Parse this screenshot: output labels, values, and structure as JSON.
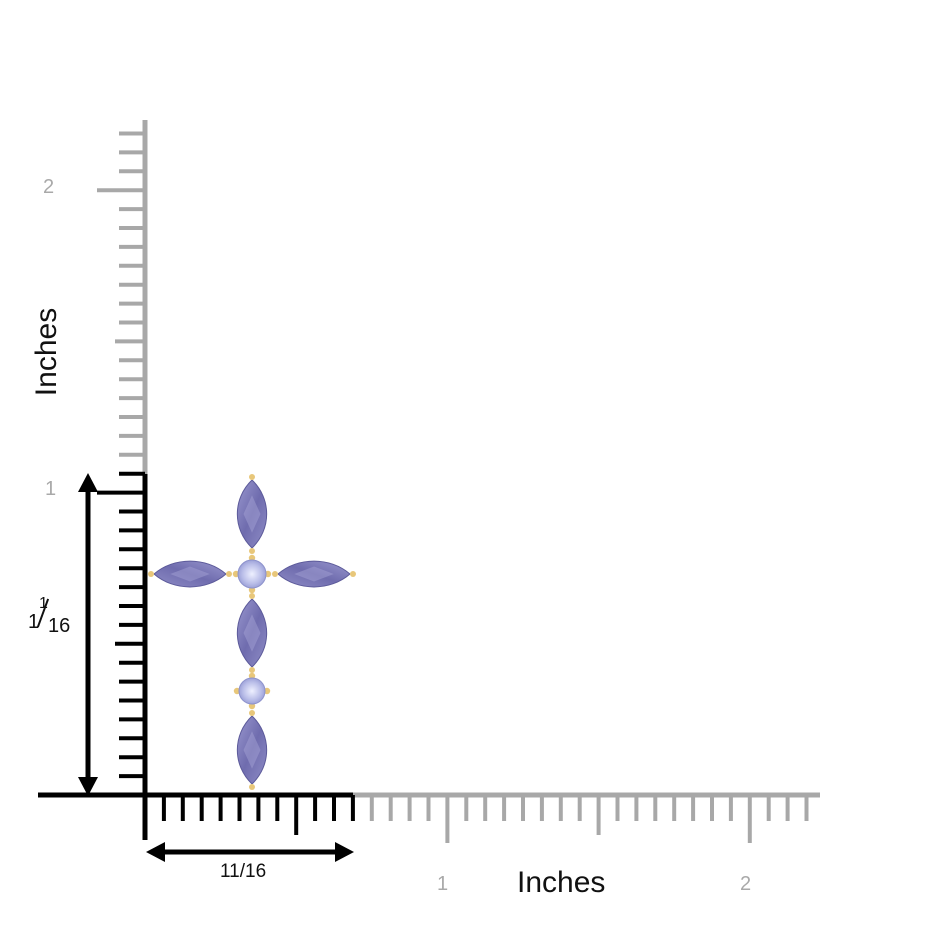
{
  "y_axis": {
    "title": "Inches",
    "tick_labels": [
      "1",
      "2"
    ]
  },
  "x_axis": {
    "title": "Inches",
    "tick_labels": [
      "1",
      "2"
    ]
  },
  "dimensions": {
    "width": "11/16",
    "height_whole": "1",
    "height_numerator": "1",
    "height_denominator": "16"
  },
  "colors": {
    "ruler_grey": "#a8a8a8",
    "ruler_black": "#000000",
    "gem_tanzanite": "#7e7cb8",
    "gem_light": "#c9cdee",
    "metal_yellow_gold": "#e8c77a"
  },
  "product": {
    "icon": "tanzanite-cross-pendant-icon"
  }
}
